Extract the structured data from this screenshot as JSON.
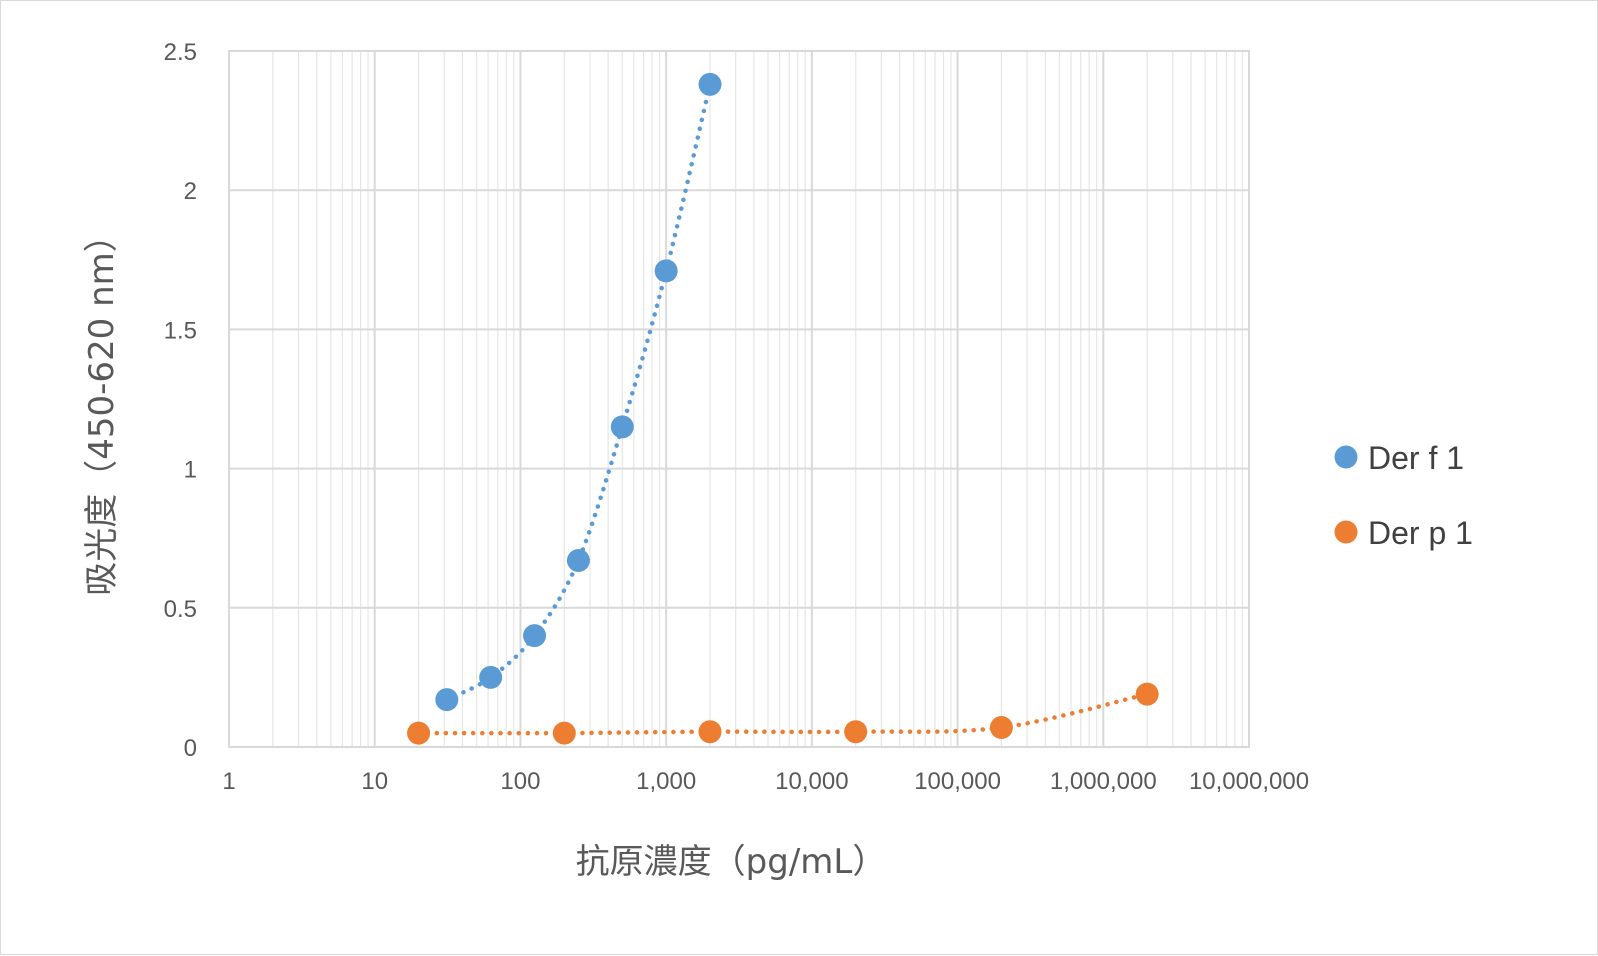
{
  "chart_data": {
    "type": "scatter",
    "title": "",
    "xlabel": "抗原濃度（pg/mL）",
    "ylabel": "吸光度（450-620 nm）",
    "x_scale": "log",
    "xlim": [
      1,
      10000000
    ],
    "ylim": [
      0,
      2.5
    ],
    "x_tick_labels": [
      "1",
      "10",
      "100",
      "1,000",
      "10,000",
      "100,000",
      "1,000,000",
      "10,000,000"
    ],
    "y_tick_labels": [
      "0",
      "0.5",
      "1",
      "1.5",
      "2",
      "2.5"
    ],
    "y_ticks": [
      0,
      0.5,
      1,
      1.5,
      2,
      2.5
    ],
    "grid": true,
    "legend_position": "right",
    "series": [
      {
        "name": "Der f 1",
        "color": "#5b9bd5",
        "line_style": "dotted",
        "x": [
          31.25,
          62.5,
          125,
          250,
          500,
          1000,
          2000
        ],
        "y": [
          0.17,
          0.25,
          0.4,
          0.67,
          1.15,
          1.71,
          2.38
        ]
      },
      {
        "name": "Der p 1",
        "color": "#ed7d31",
        "line_style": "dotted",
        "x": [
          20,
          200,
          2000,
          20000,
          200000,
          2000000
        ],
        "y": [
          0.05,
          0.05,
          0.055,
          0.055,
          0.07,
          0.19
        ]
      }
    ]
  }
}
